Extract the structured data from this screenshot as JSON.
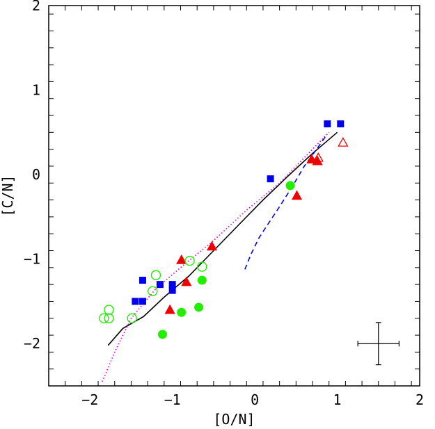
{
  "chart_data": {
    "type": "scatter",
    "xlabel": "[O/N]",
    "ylabel": "[C/N]",
    "xlim": [
      -2.5,
      2.0
    ],
    "ylim": [
      -2.5,
      2.0
    ],
    "x_ticks": [
      -2,
      -1,
      0,
      1,
      2
    ],
    "y_ticks": [
      -2,
      -1,
      0,
      1,
      2
    ],
    "x_tick_labels": [
      "−2",
      "−1",
      "0",
      "1",
      "2"
    ],
    "y_tick_labels": [
      "−2",
      "−1",
      "0",
      "1",
      "2"
    ],
    "grid": false,
    "legend": "none",
    "colors": {
      "blue": "#0000ee",
      "red": "#ee0000",
      "green": "#22ee00",
      "magenta": "#dd00dd",
      "black": "#000000"
    },
    "series": [
      {
        "marker": "filled-square",
        "color": "#0000ee",
        "points": [
          [
            0.88,
            0.6
          ],
          [
            1.04,
            0.6
          ],
          [
            0.19,
            -0.05
          ],
          [
            -1.45,
            -1.5
          ],
          [
            -1.36,
            -1.5
          ],
          [
            -1.36,
            -1.25
          ],
          [
            -1.15,
            -1.3
          ],
          [
            -1.0,
            -1.3
          ],
          [
            -1.0,
            -1.37
          ]
        ]
      },
      {
        "marker": "filled-triangle",
        "color": "#ee0000",
        "points": [
          [
            0.69,
            0.18
          ],
          [
            0.76,
            0.16
          ],
          [
            0.51,
            -0.25
          ],
          [
            -0.52,
            -0.85
          ],
          [
            -0.89,
            -1.01
          ],
          [
            -0.83,
            -1.27
          ],
          [
            -1.03,
            -1.6
          ]
        ]
      },
      {
        "marker": "open-triangle",
        "color": "#ee0000",
        "points": [
          [
            1.07,
            0.38
          ],
          [
            0.77,
            0.2
          ]
        ]
      },
      {
        "marker": "filled-circle",
        "color": "#22ee00",
        "points": [
          [
            0.43,
            -0.13
          ],
          [
            -0.64,
            -1.25
          ],
          [
            -0.68,
            -1.57
          ],
          [
            -0.89,
            -1.63
          ],
          [
            -1.12,
            -1.89
          ]
        ]
      },
      {
        "marker": "open-circle",
        "color": "#22ee00",
        "points": [
          [
            -0.64,
            -1.09
          ],
          [
            -0.79,
            -1.02
          ],
          [
            -1.2,
            -1.19
          ],
          [
            -1.24,
            -1.38
          ],
          [
            -1.49,
            -1.7
          ],
          [
            -1.77,
            -1.6
          ],
          [
            -1.77,
            -1.7
          ],
          [
            -1.83,
            -1.7
          ]
        ]
      }
    ],
    "curves": [
      {
        "style": "solid",
        "color": "#000000",
        "points": [
          [
            -1.78,
            -2.02
          ],
          [
            -1.6,
            -1.82
          ],
          [
            -1.35,
            -1.68
          ],
          [
            -1.1,
            -1.45
          ],
          [
            -0.8,
            -1.2
          ],
          [
            -0.5,
            -0.9
          ],
          [
            -0.2,
            -0.6
          ],
          [
            0.1,
            -0.3
          ],
          [
            0.4,
            -0.02
          ],
          [
            0.7,
            0.25
          ],
          [
            1.0,
            0.5
          ]
        ]
      },
      {
        "style": "dotted",
        "color": "#dd00dd",
        "points": [
          [
            -1.85,
            -2.45
          ],
          [
            -1.7,
            -2.1
          ],
          [
            -1.5,
            -1.7
          ],
          [
            -1.2,
            -1.35
          ],
          [
            -0.9,
            -1.1
          ],
          [
            -0.5,
            -0.78
          ],
          [
            -0.1,
            -0.42
          ],
          [
            0.3,
            -0.1
          ],
          [
            0.6,
            0.2
          ],
          [
            0.9,
            0.5
          ]
        ]
      },
      {
        "style": "dashed",
        "color": "#0000ee",
        "points": [
          [
            -0.12,
            -1.12
          ],
          [
            -0.05,
            -0.95
          ],
          [
            0.05,
            -0.75
          ],
          [
            0.15,
            -0.6
          ],
          [
            0.3,
            -0.38
          ],
          [
            0.45,
            -0.15
          ],
          [
            0.6,
            0.1
          ],
          [
            0.75,
            0.3
          ],
          [
            0.88,
            0.48
          ]
        ]
      }
    ],
    "error_bar": {
      "x": 1.5,
      "y": -2.0,
      "x_err": 0.25,
      "y_err": 0.25
    }
  }
}
